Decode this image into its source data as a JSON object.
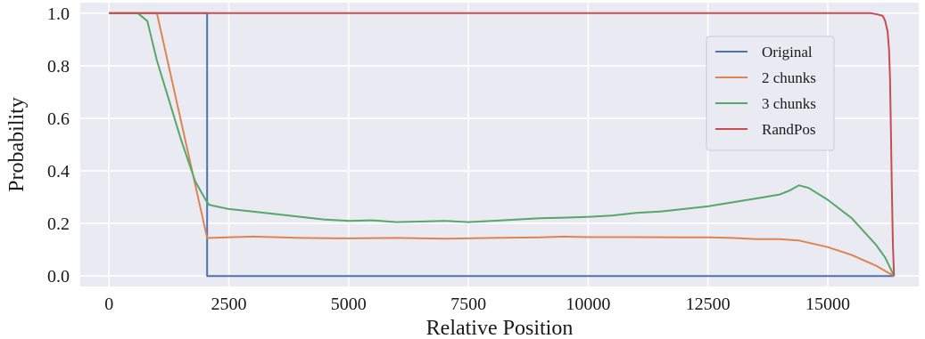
{
  "chart_data": {
    "type": "line",
    "title": "",
    "xlabel": "Relative Position",
    "ylabel": "Probability",
    "xlim": [
      -600,
      16900
    ],
    "ylim": [
      -0.04,
      1.04
    ],
    "xticks": [
      0,
      2500,
      5000,
      7500,
      10000,
      12500,
      15000
    ],
    "xtick_labels": [
      "0",
      "2500",
      "5000",
      "7500",
      "10000",
      "12500",
      "15000"
    ],
    "yticks": [
      0.0,
      0.2,
      0.4,
      0.6,
      0.8,
      1.0
    ],
    "ytick_labels": [
      "0.0",
      "0.2",
      "0.4",
      "0.6",
      "0.8",
      "1.0"
    ],
    "grid": true,
    "background": "#eaeaf2",
    "legend": {
      "placement": "upper-right"
    },
    "series": [
      {
        "name": "Original",
        "color": "#4c72b0",
        "x": [
          0,
          2047,
          2048,
          16384
        ],
        "y": [
          1.0,
          1.0,
          0.0,
          0.0
        ]
      },
      {
        "name": "2 chunks",
        "color": "#dd8452",
        "x": [
          0,
          1000,
          2048,
          2100,
          3000,
          4000,
          5000,
          6000,
          7000,
          7500,
          8000,
          9000,
          9500,
          10000,
          11000,
          12000,
          12500,
          13000,
          13500,
          14000,
          14400,
          15000,
          15500,
          16000,
          16384
        ],
        "y": [
          1.0,
          1.0,
          0.145,
          0.145,
          0.15,
          0.145,
          0.143,
          0.145,
          0.142,
          0.143,
          0.145,
          0.147,
          0.15,
          0.148,
          0.148,
          0.147,
          0.147,
          0.145,
          0.14,
          0.14,
          0.135,
          0.11,
          0.08,
          0.04,
          0.0
        ]
      },
      {
        "name": "3 chunks",
        "color": "#55a868",
        "x": [
          0,
          600,
          800,
          1000,
          1200,
          1500,
          1800,
          2048,
          2100,
          2500,
          3000,
          3500,
          4000,
          4500,
          5000,
          5500,
          6000,
          6500,
          7000,
          7500,
          8000,
          8500,
          9000,
          9500,
          10000,
          10500,
          11000,
          11500,
          12000,
          12500,
          13000,
          13500,
          14000,
          14200,
          14400,
          14600,
          15000,
          15500,
          16000,
          16200,
          16384
        ],
        "y": [
          1.0,
          1.0,
          0.97,
          0.82,
          0.7,
          0.52,
          0.36,
          0.28,
          0.27,
          0.255,
          0.245,
          0.235,
          0.225,
          0.215,
          0.21,
          0.212,
          0.205,
          0.207,
          0.21,
          0.205,
          0.21,
          0.215,
          0.22,
          0.222,
          0.225,
          0.23,
          0.24,
          0.245,
          0.255,
          0.265,
          0.28,
          0.295,
          0.31,
          0.325,
          0.345,
          0.335,
          0.29,
          0.22,
          0.12,
          0.07,
          0.0
        ]
      },
      {
        "name": "RandPos",
        "color": "#c44e52",
        "x": [
          0,
          15900,
          16050,
          16150,
          16200,
          16250,
          16280,
          16300,
          16320,
          16340,
          16360,
          16384
        ],
        "y": [
          1.0,
          1.0,
          0.995,
          0.99,
          0.97,
          0.93,
          0.86,
          0.75,
          0.55,
          0.32,
          0.12,
          0.0
        ]
      }
    ]
  }
}
